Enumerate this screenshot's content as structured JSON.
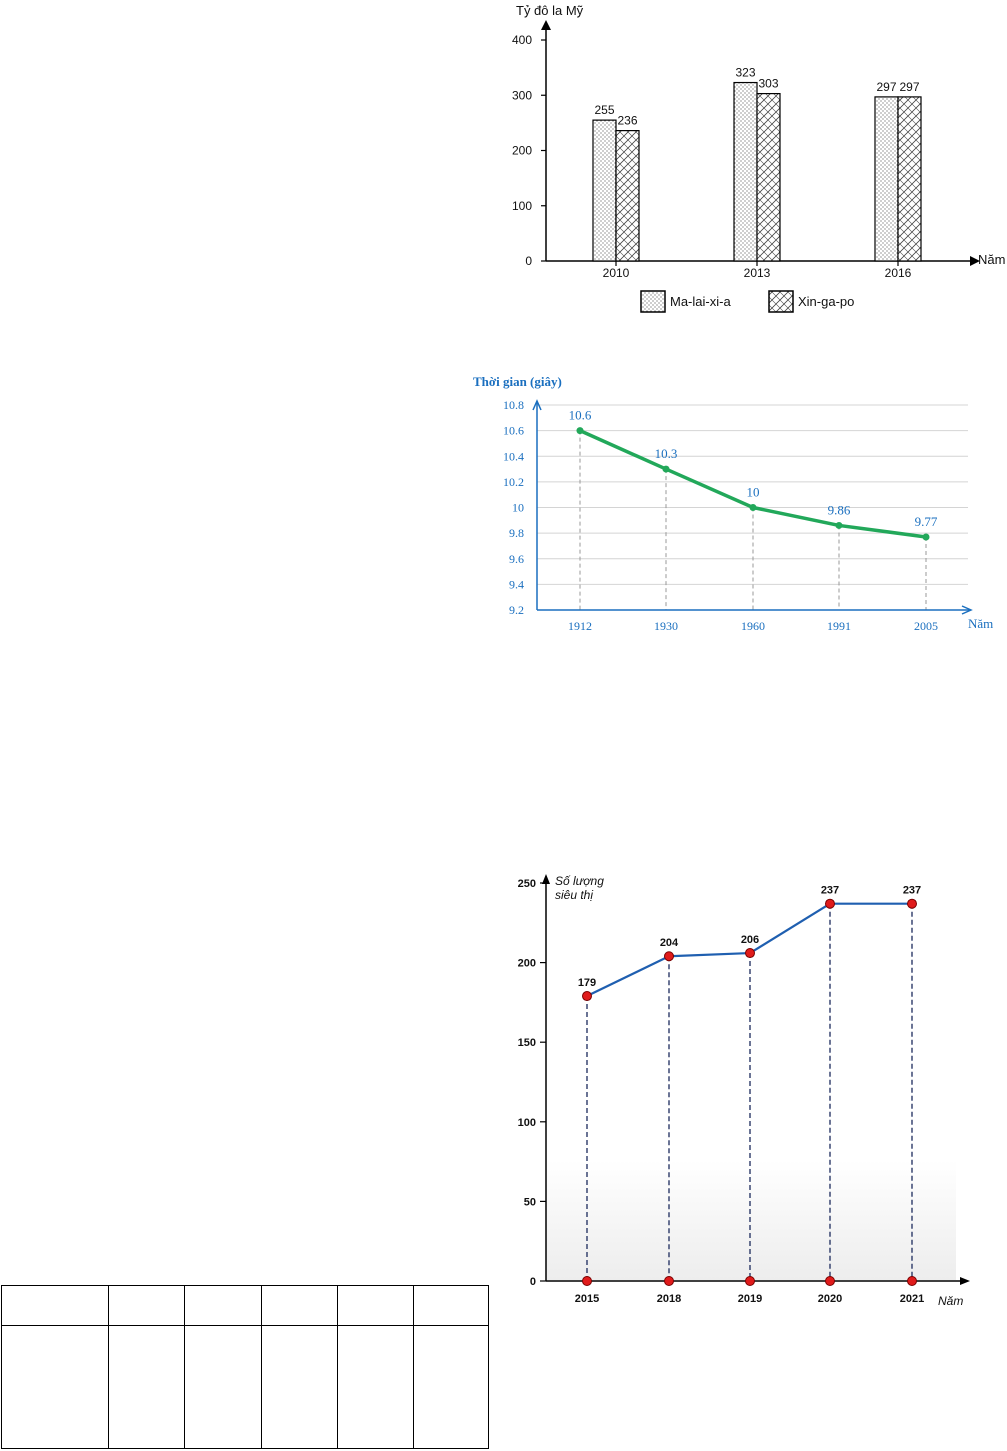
{
  "charts": {
    "bar": {
      "ylabel": "Tỷ đô la Mỹ",
      "xlabel": "Năm",
      "yticks": [
        "0",
        "100",
        "200",
        "300",
        "400"
      ]
    },
    "line1": {
      "ylabel": "Thời gian (giây)",
      "xlabel": "Năm",
      "yticks": [
        "9.2",
        "9.4",
        "9.6",
        "9.8",
        "10",
        "10.2",
        "10.4",
        "10.6",
        "10.8"
      ],
      "line_color": "#22a85a",
      "text_color": "#1a6fbf"
    },
    "line2": {
      "ylabel_line1": "Số lượng",
      "ylabel_line2": "siêu thị",
      "xlabel": "Năm",
      "yticks": [
        "0",
        "50",
        "100",
        "150",
        "200",
        "250"
      ],
      "line_color": "#1f5fb0",
      "point_color": "#e01b1b"
    }
  },
  "chart_data": [
    {
      "type": "bar",
      "categories": [
        "2010",
        "2013",
        "2016"
      ],
      "series": [
        {
          "name": "Ma-lai-xi-a",
          "values": [
            255,
            323,
            297
          ]
        },
        {
          "name": "Xin-ga-po",
          "values": [
            236,
            303,
            297
          ]
        }
      ],
      "ylabel": "Tỷ đô la Mỹ",
      "xlabel": "Năm",
      "ylim": [
        0,
        400
      ],
      "legend": "bottom"
    },
    {
      "type": "line",
      "x": [
        "1912",
        "1930",
        "1960",
        "1991",
        "2005"
      ],
      "values": [
        10.6,
        10.3,
        10,
        9.86,
        9.77
      ],
      "labels": [
        "10.6",
        "10.3",
        "10",
        "9.86",
        "9.77"
      ],
      "ylabel": "Thời gian (giây)",
      "xlabel": "Năm",
      "ylim": [
        9.2,
        10.8
      ],
      "grid": true
    },
    {
      "type": "line",
      "x": [
        "2015",
        "2018",
        "2019",
        "2020",
        "2021"
      ],
      "values": [
        179,
        204,
        206,
        237,
        237
      ],
      "ylabel": "Số lượng siêu thị",
      "xlabel": "Năm",
      "ylim": [
        0,
        250
      ]
    }
  ]
}
